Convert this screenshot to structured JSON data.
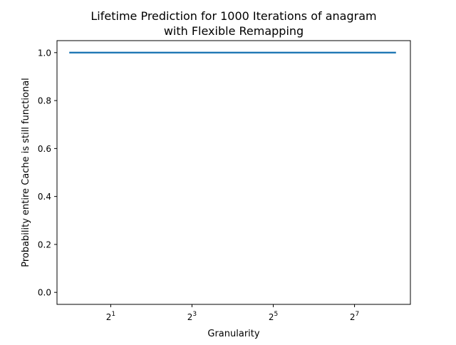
{
  "chart_data": {
    "type": "line",
    "title": "Lifetime Prediction for 1000 Iterations of anagram\nwith Flexible Remapping",
    "xlabel": "Granularity",
    "ylabel": "Probability entire Cache is still functional",
    "x_scale": "log2",
    "x_tick_labels": [
      {
        "base": "2",
        "exp": "1",
        "value": 2
      },
      {
        "base": "2",
        "exp": "3",
        "value": 8
      },
      {
        "base": "2",
        "exp": "5",
        "value": 32
      },
      {
        "base": "2",
        "exp": "7",
        "value": 128
      }
    ],
    "y_tick_labels": [
      "0.0",
      "0.2",
      "0.4",
      "0.6",
      "0.8",
      "1.0"
    ],
    "y_tick_values": [
      0.0,
      0.2,
      0.4,
      0.6,
      0.8,
      1.0
    ],
    "xlim": [
      0.8,
      332
    ],
    "ylim": [
      -0.05,
      1.05
    ],
    "grid": false,
    "series": [
      {
        "color": "#1f77b4",
        "x": [
          1,
          2,
          4,
          8,
          16,
          32,
          64,
          128,
          256
        ],
        "y": [
          1.0,
          1.0,
          1.0,
          1.0,
          1.0,
          1.0,
          1.0,
          1.0,
          1.0
        ]
      }
    ]
  }
}
